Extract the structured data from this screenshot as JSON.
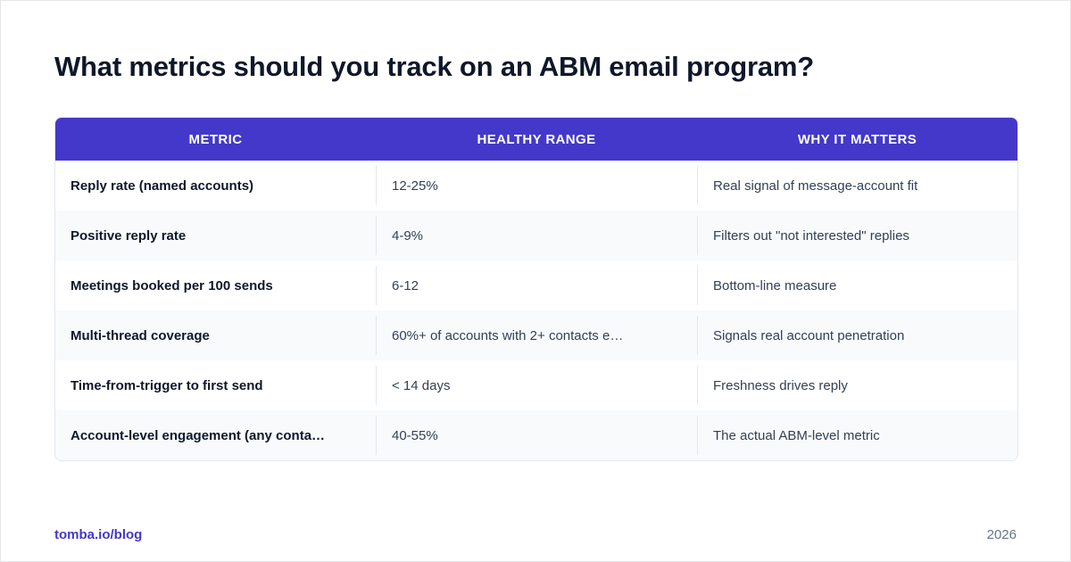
{
  "title": "What metrics should you track on an ABM email program?",
  "table": {
    "headers": [
      "METRIC",
      "HEALTHY RANGE",
      "WHY IT MATTERS"
    ],
    "rows": [
      [
        "Reply rate (named accounts)",
        "12-25%",
        "Real signal of message-account fit"
      ],
      [
        "Positive reply rate",
        "4-9%",
        "Filters out \"not interested\" replies"
      ],
      [
        "Meetings booked per 100 sends",
        "6-12",
        "Bottom-line measure"
      ],
      [
        "Multi-thread coverage",
        "60%+ of accounts with 2+ contacts e…",
        "Signals real account penetration"
      ],
      [
        "Time-from-trigger to first send",
        "< 14 days",
        "Freshness drives reply"
      ],
      [
        "Account-level engagement (any conta…",
        "40-55%",
        "The actual ABM-level metric"
      ]
    ]
  },
  "footer": {
    "link": "tomba.io/blog",
    "year": "2026"
  },
  "colors": {
    "header_bg": "#4338ca",
    "header_text": "#ffffff",
    "title_text": "#0f172a",
    "body_text": "#334155",
    "link_text": "#4338ca",
    "year_text": "#64748b",
    "alt_row_bg": "#f8fafc"
  }
}
